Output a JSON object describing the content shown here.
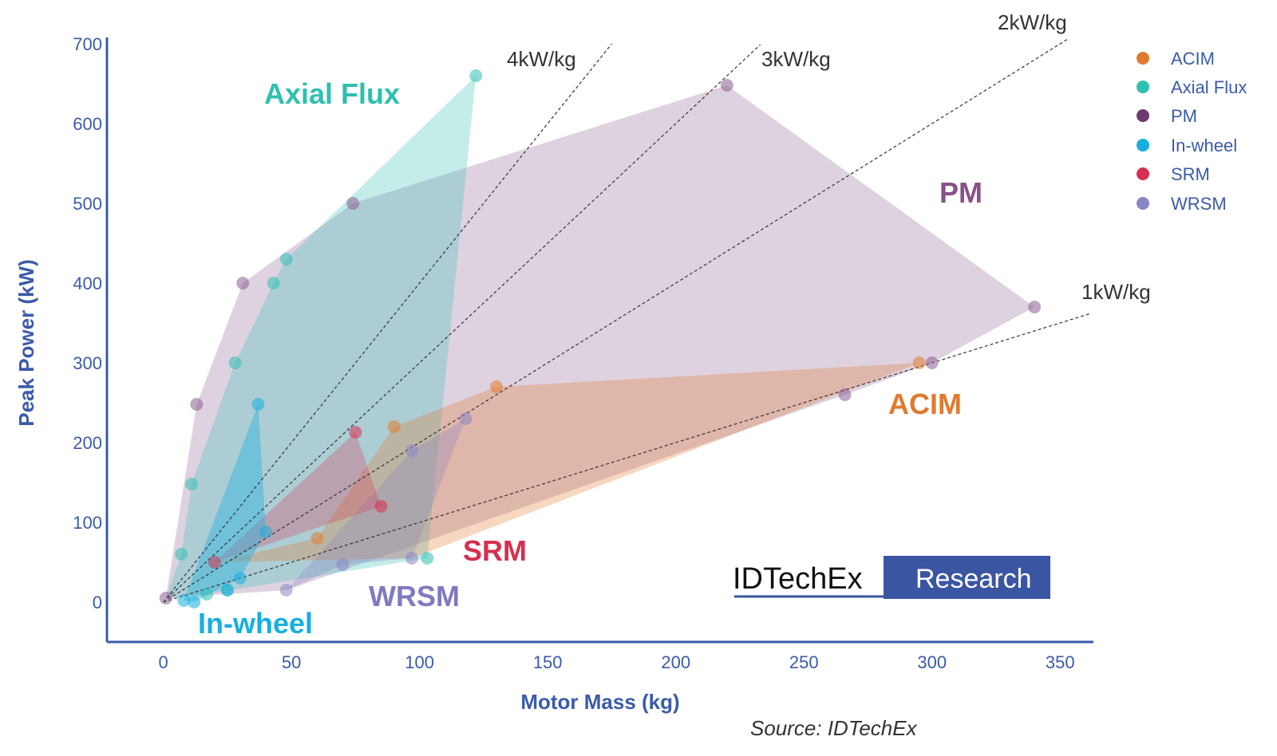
{
  "chart_data": {
    "type": "scatter",
    "title": "",
    "xlabel": "Motor Mass (kg)",
    "ylabel": "Peak Power (kW)",
    "xlim": [
      -22,
      363
    ],
    "ylim": [
      -50,
      708
    ],
    "x_ticks": [
      0,
      50,
      100,
      150,
      200,
      250,
      300,
      350
    ],
    "y_ticks": [
      0,
      100,
      200,
      300,
      400,
      500,
      600,
      700
    ],
    "legend_position": "top-right",
    "series": [
      {
        "name": "PM",
        "color": "#8a5c8f",
        "fill": "rgba(140, 92, 145, 0.28)",
        "label": "PM",
        "z": 1,
        "hull": [
          [
            1,
            5
          ],
          [
            13,
            248
          ],
          [
            31,
            400
          ],
          [
            74,
            500
          ],
          [
            220,
            648
          ],
          [
            340,
            370
          ],
          [
            300,
            300
          ],
          [
            266,
            260
          ],
          [
            48,
            15
          ]
        ],
        "points": [
          [
            1,
            5
          ],
          [
            13,
            248
          ],
          [
            31,
            400
          ],
          [
            74,
            500
          ],
          [
            220,
            648
          ],
          [
            340,
            370
          ],
          [
            300,
            300
          ],
          [
            266,
            260
          ]
        ]
      },
      {
        "name": "Axial Flux",
        "color": "#2fbfb0",
        "fill": "rgba(60, 196, 184, 0.30)",
        "label": "Axial Flux",
        "z": 2,
        "hull": [
          [
            1,
            5
          ],
          [
            7,
            60
          ],
          [
            11,
            148
          ],
          [
            28,
            300
          ],
          [
            43,
            400
          ],
          [
            48,
            430
          ],
          [
            122,
            660
          ],
          [
            103,
            55
          ],
          [
            17,
            10
          ]
        ],
        "points": [
          [
            7,
            60
          ],
          [
            11,
            148
          ],
          [
            28,
            300
          ],
          [
            43,
            400
          ],
          [
            48,
            430
          ],
          [
            122,
            660
          ],
          [
            103,
            55
          ],
          [
            17,
            10
          ],
          [
            25,
            15
          ]
        ]
      },
      {
        "name": "ACIM",
        "color": "#e07b2e",
        "fill": "rgba(224, 123, 46, 0.30)",
        "label": "ACIM",
        "z": 3,
        "hull": [
          [
            20,
            50
          ],
          [
            60,
            80
          ],
          [
            90,
            220
          ],
          [
            130,
            270
          ],
          [
            295,
            300
          ],
          [
            97,
            55
          ]
        ],
        "points": [
          [
            60,
            80
          ],
          [
            90,
            220
          ],
          [
            130,
            270
          ],
          [
            295,
            300
          ]
        ]
      },
      {
        "name": "WRSM",
        "color": "#8a86c6",
        "fill": "rgba(138, 134, 198, 0.30)",
        "label": "WRSM",
        "z": 4,
        "hull": [
          [
            48,
            15
          ],
          [
            70,
            47
          ],
          [
            97,
            55
          ],
          [
            118,
            230
          ],
          [
            97,
            190
          ]
        ],
        "points": [
          [
            48,
            15
          ],
          [
            70,
            47
          ],
          [
            97,
            55
          ],
          [
            118,
            230
          ],
          [
            97,
            190
          ]
        ]
      },
      {
        "name": "SRM",
        "color": "#d72f4f",
        "fill": "rgba(215, 47, 79, 0.28)",
        "label": "SRM",
        "z": 5,
        "hull": [
          [
            20,
            50
          ],
          [
            75,
            213
          ],
          [
            85,
            120
          ]
        ],
        "points": [
          [
            20,
            50
          ],
          [
            75,
            213
          ],
          [
            85,
            120
          ]
        ]
      },
      {
        "name": "In-wheel",
        "color": "#17aee0",
        "fill": "rgba(23, 174, 224, 0.40)",
        "label": "In-wheel",
        "z": 6,
        "hull": [
          [
            8,
            2
          ],
          [
            37,
            248
          ],
          [
            40,
            88
          ],
          [
            30,
            30
          ],
          [
            12,
            0
          ]
        ],
        "points": [
          [
            8,
            2
          ],
          [
            12,
            0
          ],
          [
            25,
            15
          ],
          [
            30,
            30
          ],
          [
            37,
            248
          ],
          [
            40,
            88
          ]
        ]
      }
    ],
    "reference_lines": [
      {
        "label": "4kW/kg",
        "slope": 4,
        "x_end": 175
      },
      {
        "label": "3kW/kg",
        "slope": 3,
        "x_end": 233
      },
      {
        "label": "2kW/kg",
        "slope": 2,
        "x_end": 353
      },
      {
        "label": "1kW/kg",
        "slope": 1,
        "x_end": 362
      }
    ],
    "legend_order": [
      "ACIM",
      "Axial Flux",
      "PM",
      "In-wheel",
      "SRM",
      "WRSM"
    ],
    "source": "Source: IDTechEx"
  },
  "logo": {
    "name": "IDTechEx",
    "tag": "Research",
    "color": "#3a55a2"
  }
}
